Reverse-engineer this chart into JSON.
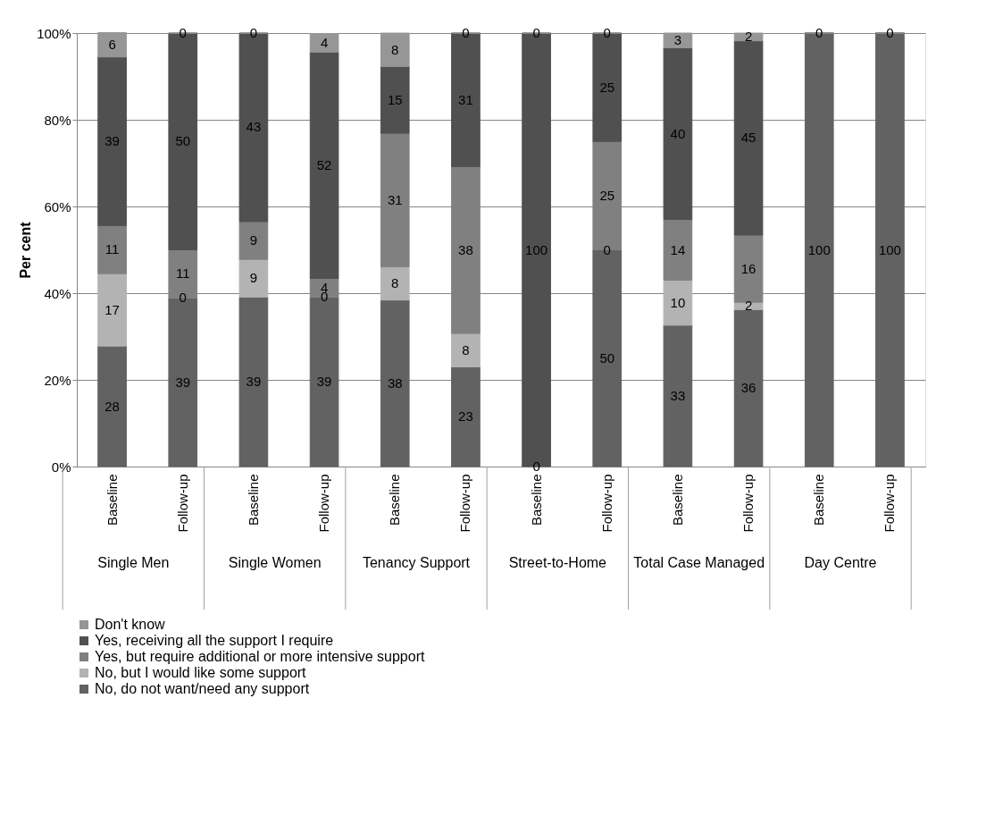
{
  "chart_data": {
    "type": "bar",
    "stacked": true,
    "ylabel": "Per cent",
    "categories": [
      "Baseline",
      "Follow-up",
      "Baseline",
      "Follow-up",
      "Baseline",
      "Follow-up",
      "Baseline",
      "Follow-up",
      "Baseline",
      "Follow-up",
      "Baseline",
      "Follow-up"
    ],
    "annotations": [
      "Single Men",
      "Single Women",
      "Tenancy Support",
      "Street-to-Home",
      "Total Case Managed",
      "Day Centre"
    ],
    "series": [
      {
        "name": "No, do not want/need any support",
        "color": "#626262",
        "values": [
          27.8,
          38.9,
          39.1,
          39.1,
          38.4,
          23.0,
          0,
          50,
          32.6,
          36.2,
          100,
          100
        ],
        "value_labels": [
          "28",
          "39",
          "39",
          "39",
          "38",
          "23",
          "0",
          "50",
          "33",
          "36",
          "100",
          "100"
        ]
      },
      {
        "name": "No, but I would like some support",
        "color": "#b3b3b3",
        "values": [
          16.7,
          0,
          8.7,
          0,
          7.7,
          7.7,
          0,
          0,
          10.4,
          1.7,
          0,
          0
        ],
        "value_labels": [
          "17",
          "0",
          "9",
          "0",
          "8",
          "8",
          null,
          "0",
          "10",
          "2",
          null,
          null
        ]
      },
      {
        "name": "Yes, but require additional or more intensive support",
        "color": "#808080",
        "values": [
          11.1,
          11.1,
          8.7,
          4.3,
          30.8,
          38.5,
          0,
          25,
          14,
          15.5,
          0,
          0
        ],
        "value_labels": [
          "11",
          "11",
          "9",
          "4",
          "31",
          "38",
          null,
          "25",
          "14",
          "16",
          null,
          null
        ]
      },
      {
        "name": "Yes, receiving all the support I require",
        "color": "#505050",
        "values": [
          38.9,
          50,
          43.5,
          52.2,
          15.4,
          30.8,
          100,
          25,
          39.6,
          44.8,
          0,
          0
        ],
        "value_labels": [
          "39",
          "50",
          "43",
          "52",
          "15",
          "31",
          "100",
          "25",
          "40",
          "45",
          null,
          null
        ]
      },
      {
        "name": "Don't know",
        "color": "#969696",
        "values": [
          5.6,
          0,
          0,
          4.3,
          7.7,
          0,
          0,
          0,
          3.4,
          1.8,
          0,
          0
        ],
        "value_labels": [
          "6",
          "0",
          "0",
          "4",
          "8",
          "0",
          "0",
          "0",
          "3",
          "2",
          "0",
          "0"
        ]
      }
    ],
    "ylim": [
      0,
      100
    ],
    "yticks": [
      {
        "value": 0,
        "label": "0%"
      },
      {
        "value": 20,
        "label": "20%"
      },
      {
        "value": 40,
        "label": "40%"
      },
      {
        "value": 60,
        "label": "60%"
      },
      {
        "value": 80,
        "label": "80%"
      },
      {
        "value": 100,
        "label": "100%"
      }
    ],
    "grid": "y",
    "legend": "bottom"
  }
}
